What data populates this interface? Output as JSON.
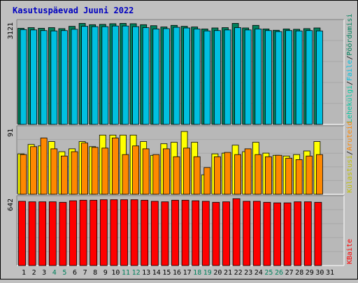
{
  "title": "Kasutuspäevad Juuni 2022",
  "colors": {
    "title": "#0000c0",
    "page_bg": "#c0c0c0",
    "plot_bg": "#b8b8b8",
    "grid": "#a8a8a8",
    "hits": "#00805c",
    "files": "#00c0e0",
    "pages": "#00a8c8",
    "visits": "#ffff00",
    "sites": "#ff8800",
    "kbytes": "#ff0000",
    "weekday_label": "#000000",
    "weekend_label": "#00805c"
  },
  "chart_data": [
    {
      "type": "bar",
      "panel": "hits-files-pages",
      "ylabel_max": "3121",
      "legend": [
        "Pöördumisi",
        "Faile",
        "Lehekülgi"
      ],
      "legend_separators": [
        "/",
        "/"
      ],
      "ylim": [
        0,
        3121
      ],
      "categories": [
        "1",
        "2",
        "3",
        "4",
        "5",
        "6",
        "7",
        "8",
        "9",
        "10",
        "11",
        "12",
        "13",
        "14",
        "15",
        "16",
        "17",
        "18",
        "19",
        "20",
        "21",
        "22",
        "23",
        "24",
        "25",
        "26",
        "27",
        "28",
        "29",
        "30",
        "31"
      ],
      "series": [
        {
          "name": "Pöördumisi",
          "values": [
            2940,
            2960,
            2940,
            2960,
            2930,
            3000,
            3090,
            3050,
            3060,
            3080,
            3090,
            3080,
            3050,
            3020,
            2980,
            3030,
            3000,
            2980,
            2920,
            2950,
            2960,
            3090,
            2950,
            3030,
            2920,
            2880,
            2920,
            2910,
            2930,
            2950,
            null
          ]
        },
        {
          "name": "Faile",
          "values": [
            2900,
            2890,
            2870,
            2860,
            2870,
            2910,
            3000,
            2990,
            2990,
            3010,
            3010,
            2990,
            2960,
            2920,
            2930,
            2970,
            2950,
            2920,
            2860,
            2870,
            2890,
            2960,
            2890,
            2920,
            2870,
            2840,
            2870,
            2860,
            2870,
            2860,
            null
          ]
        }
      ]
    },
    {
      "type": "bar",
      "panel": "sites-visits",
      "ylabel_max": "91",
      "legend": [
        "Aruteid",
        "Külastusi"
      ],
      "legend_separators": [
        "/"
      ],
      "ylim": [
        0,
        91
      ],
      "categories": [
        "1",
        "2",
        "3",
        "4",
        "5",
        "6",
        "7",
        "8",
        "9",
        "10",
        "11",
        "12",
        "13",
        "14",
        "15",
        "16",
        "17",
        "18",
        "19",
        "20",
        "21",
        "22",
        "23",
        "24",
        "25",
        "26",
        "27",
        "28",
        "29",
        "30",
        "31"
      ],
      "series": [
        {
          "name": "Külastusi",
          "values": [
            56,
            69,
            67,
            73,
            59,
            63,
            73,
            66,
            82,
            82,
            82,
            82,
            73,
            54,
            70,
            72,
            87,
            72,
            27,
            56,
            57,
            68,
            59,
            72,
            57,
            54,
            53,
            55,
            60,
            73,
            null
          ]
        },
        {
          "name": "Aruteid",
          "values": [
            55,
            66,
            78,
            63,
            53,
            59,
            71,
            65,
            64,
            78,
            55,
            67,
            63,
            55,
            63,
            52,
            64,
            52,
            37,
            52,
            58,
            55,
            63,
            55,
            52,
            54,
            50,
            48,
            53,
            55,
            null
          ]
        }
      ]
    },
    {
      "type": "bar",
      "panel": "kbytes",
      "ylabel_max": "642",
      "legend": [
        "KBaite"
      ],
      "ylim": [
        0,
        642
      ],
      "categories": [
        "1",
        "2",
        "3",
        "4",
        "5",
        "6",
        "7",
        "8",
        "9",
        "10",
        "11",
        "12",
        "13",
        "14",
        "15",
        "16",
        "17",
        "18",
        "19",
        "20",
        "21",
        "22",
        "23",
        "24",
        "25",
        "26",
        "27",
        "28",
        "29",
        "30",
        "31"
      ],
      "series": [
        {
          "name": "KBaite",
          "values": [
            615,
            610,
            610,
            610,
            605,
            620,
            625,
            625,
            630,
            630,
            630,
            630,
            625,
            615,
            610,
            625,
            625,
            620,
            615,
            605,
            610,
            640,
            615,
            615,
            605,
            600,
            600,
            610,
            610,
            605,
            null
          ]
        }
      ]
    }
  ],
  "weekend_days": [
    "4",
    "5",
    "11",
    "12",
    "18",
    "19",
    "25",
    "26"
  ]
}
